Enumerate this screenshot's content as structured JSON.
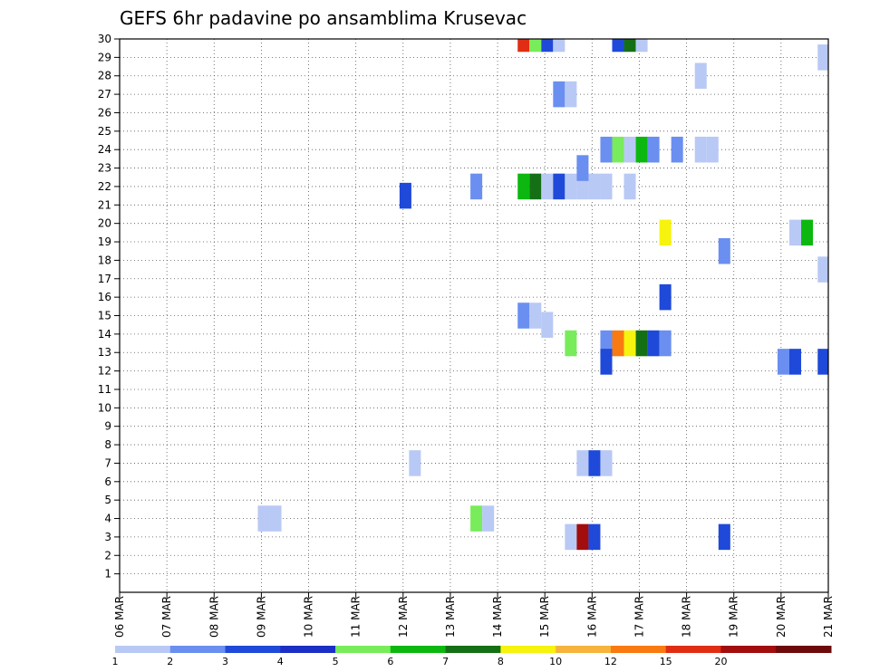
{
  "chart_data": {
    "type": "heatmap",
    "title": "GEFS 6hr padavine po ansamblima Krusevac",
    "xlabel": "",
    "ylabel": "",
    "x_ticks": [
      "06 MAR",
      "07 MAR",
      "08 MAR",
      "09 MAR",
      "10 MAR",
      "11 MAR",
      "12 MAR",
      "13 MAR",
      "14 MAR",
      "15 MAR",
      "16 MAR",
      "17 MAR",
      "18 MAR",
      "19 MAR",
      "20 MAR",
      "21 MAR"
    ],
    "x_range_days": [
      0,
      15
    ],
    "y_ticks": [
      "1",
      "2",
      "3",
      "4",
      "5",
      "6",
      "7",
      "8",
      "9",
      "10",
      "11",
      "12",
      "13",
      "14",
      "15",
      "16",
      "17",
      "18",
      "19",
      "20",
      "21",
      "22",
      "23",
      "24",
      "25",
      "26",
      "27",
      "28",
      "29",
      "30"
    ],
    "y_range": [
      0,
      30
    ],
    "grid": true,
    "legend": {
      "labels": [
        "1",
        "2",
        "3",
        "4",
        "5",
        "6",
        "7",
        "8",
        "10",
        "12",
        "15",
        "20"
      ],
      "colors": [
        "#b9c9f5",
        "#6a8ff0",
        "#1f49d8",
        "#1c2fc4",
        "#78ec5a",
        "#0cb810",
        "#157015",
        "#f6f30e",
        "#f6b43c",
        "#f97a11",
        "#e02e14",
        "#a20d0d",
        "#6e0a0a"
      ]
    },
    "cells": [
      {
        "t": 3.05,
        "v": 4.0,
        "c": "#b9c9f5"
      },
      {
        "t": 3.3,
        "v": 4.0,
        "c": "#b9c9f5"
      },
      {
        "t": 6.25,
        "v": 7.0,
        "c": "#b9c9f5"
      },
      {
        "t": 6.05,
        "v": 21.5,
        "c": "#1f49d8"
      },
      {
        "t": 7.55,
        "v": 22.0,
        "c": "#6a8ff0"
      },
      {
        "t": 7.55,
        "v": 4.0,
        "c": "#78ec5a"
      },
      {
        "t": 7.8,
        "v": 4.0,
        "c": "#b9c9f5"
      },
      {
        "t": 8.55,
        "v": 30.0,
        "c": "#e02e14"
      },
      {
        "t": 8.8,
        "v": 30.0,
        "c": "#78ec5a"
      },
      {
        "t": 9.05,
        "v": 30.0,
        "c": "#1f49d8"
      },
      {
        "t": 9.3,
        "v": 30.0,
        "c": "#b9c9f5"
      },
      {
        "t": 8.55,
        "v": 22.0,
        "c": "#0cb810"
      },
      {
        "t": 8.8,
        "v": 22.0,
        "c": "#157015"
      },
      {
        "t": 9.05,
        "v": 22.0,
        "c": "#b9c9f5"
      },
      {
        "t": 9.3,
        "v": 22.0,
        "c": "#1f49d8"
      },
      {
        "t": 9.55,
        "v": 22.0,
        "c": "#b9c9f5"
      },
      {
        "t": 9.8,
        "v": 22.0,
        "c": "#b9c9f5"
      },
      {
        "t": 10.05,
        "v": 22.0,
        "c": "#b9c9f5"
      },
      {
        "t": 10.3,
        "v": 22.0,
        "c": "#b9c9f5"
      },
      {
        "t": 10.8,
        "v": 22.0,
        "c": "#b9c9f5"
      },
      {
        "t": 9.3,
        "v": 27.0,
        "c": "#6a8ff0"
      },
      {
        "t": 9.55,
        "v": 27.0,
        "c": "#b9c9f5"
      },
      {
        "t": 9.8,
        "v": 23.0,
        "c": "#6a8ff0"
      },
      {
        "t": 8.55,
        "v": 15.0,
        "c": "#6a8ff0"
      },
      {
        "t": 8.8,
        "v": 15.0,
        "c": "#b9c9f5"
      },
      {
        "t": 9.05,
        "v": 14.5,
        "c": "#b9c9f5"
      },
      {
        "t": 9.55,
        "v": 13.5,
        "c": "#78ec5a"
      },
      {
        "t": 9.55,
        "v": 3.0,
        "c": "#b9c9f5"
      },
      {
        "t": 9.8,
        "v": 3.0,
        "c": "#a20d0d"
      },
      {
        "t": 10.05,
        "v": 3.0,
        "c": "#1f49d8"
      },
      {
        "t": 9.8,
        "v": 7.0,
        "c": "#b9c9f5"
      },
      {
        "t": 10.05,
        "v": 7.0,
        "c": "#1f49d8"
      },
      {
        "t": 10.3,
        "v": 7.0,
        "c": "#b9c9f5"
      },
      {
        "t": 10.3,
        "v": 24.0,
        "c": "#6a8ff0"
      },
      {
        "t": 10.55,
        "v": 24.0,
        "c": "#78ec5a"
      },
      {
        "t": 10.8,
        "v": 24.0,
        "c": "#b9c9f5"
      },
      {
        "t": 11.05,
        "v": 24.0,
        "c": "#0cb810"
      },
      {
        "t": 11.3,
        "v": 24.0,
        "c": "#6a8ff0"
      },
      {
        "t": 11.8,
        "v": 24.0,
        "c": "#6a8ff0"
      },
      {
        "t": 12.3,
        "v": 24.0,
        "c": "#b9c9f5"
      },
      {
        "t": 12.55,
        "v": 24.0,
        "c": "#b9c9f5"
      },
      {
        "t": 10.55,
        "v": 30.0,
        "c": "#1f49d8"
      },
      {
        "t": 10.8,
        "v": 30.0,
        "c": "#157015"
      },
      {
        "t": 11.05,
        "v": 30.0,
        "c": "#b9c9f5"
      },
      {
        "t": 10.3,
        "v": 13.5,
        "c": "#6a8ff0"
      },
      {
        "t": 10.55,
        "v": 13.5,
        "c": "#f97a11"
      },
      {
        "t": 10.8,
        "v": 13.5,
        "c": "#f6f30e"
      },
      {
        "t": 11.05,
        "v": 13.5,
        "c": "#157015"
      },
      {
        "t": 11.3,
        "v": 13.5,
        "c": "#1f49d8"
      },
      {
        "t": 11.55,
        "v": 13.5,
        "c": "#6a8ff0"
      },
      {
        "t": 10.3,
        "v": 12.5,
        "c": "#1f49d8"
      },
      {
        "t": 11.55,
        "v": 19.5,
        "c": "#f6f30e"
      },
      {
        "t": 11.55,
        "v": 16.0,
        "c": "#1f49d8"
      },
      {
        "t": 12.3,
        "v": 28.0,
        "c": "#b9c9f5"
      },
      {
        "t": 12.8,
        "v": 18.5,
        "c": "#6a8ff0"
      },
      {
        "t": 12.8,
        "v": 3.0,
        "c": "#1f49d8"
      },
      {
        "t": 14.05,
        "v": 12.5,
        "c": "#6a8ff0"
      },
      {
        "t": 14.3,
        "v": 12.5,
        "c": "#1f49d8"
      },
      {
        "t": 14.9,
        "v": 12.5,
        "c": "#1f49d8"
      },
      {
        "t": 14.3,
        "v": 19.5,
        "c": "#b9c9f5"
      },
      {
        "t": 14.55,
        "v": 19.5,
        "c": "#0cb810"
      },
      {
        "t": 14.9,
        "v": 29.0,
        "c": "#b9c9f5"
      },
      {
        "t": 14.9,
        "v": 17.5,
        "c": "#b9c9f5"
      }
    ]
  }
}
